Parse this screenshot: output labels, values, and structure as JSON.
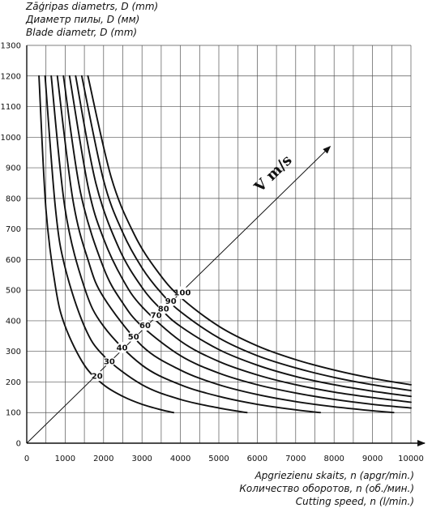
{
  "chart_data": {
    "type": "line",
    "ylabel_lines": [
      "Zāģripas diametrs, D (mm)",
      "Диаметр пилы, D (мм)",
      "Blade diametr, D (mm)"
    ],
    "xlabel_lines": [
      "Apgriezienu skaits, n (apgr/min.)",
      "Количество оборотов, n (об./мин.)",
      "Cutting speed, n (l/min.)"
    ],
    "xlim": [
      0,
      10000
    ],
    "ylim": [
      0,
      1300
    ],
    "x_ticks": [
      0,
      1000,
      2000,
      3000,
      4000,
      5000,
      6000,
      7000,
      8000,
      9000,
      10000
    ],
    "y_ticks": [
      0,
      100,
      200,
      300,
      400,
      500,
      600,
      700,
      800,
      900,
      1000,
      1100,
      1200,
      1300
    ],
    "grid": true,
    "speed_axis_label": "V m/s",
    "series": [
      {
        "name": "20",
        "x": [
          318,
          500,
          750,
          1000,
          1500,
          2000,
          2500,
          3000,
          3500,
          3820
        ],
        "y": [
          1200,
          764,
          509,
          382,
          255,
          191,
          153,
          127,
          109,
          100
        ]
      },
      {
        "name": "30",
        "x": [
          477,
          750,
          1000,
          1500,
          2000,
          3000,
          4000,
          5000,
          5730
        ],
        "y": [
          1200,
          764,
          573,
          382,
          286,
          191,
          143,
          115,
          100
        ]
      },
      {
        "name": "40",
        "x": [
          637,
          1000,
          1500,
          2000,
          3000,
          4000,
          5000,
          6000,
          7000,
          7640
        ],
        "y": [
          1200,
          764,
          509,
          382,
          255,
          191,
          153,
          127,
          109,
          100
        ]
      },
      {
        "name": "50",
        "x": [
          796,
          1200,
          1600,
          2000,
          3000,
          4000,
          5000,
          6000,
          7000,
          8000,
          9000,
          9550
        ],
        "y": [
          1200,
          796,
          597,
          477,
          318,
          239,
          191,
          159,
          136,
          119,
          106,
          100
        ]
      },
      {
        "name": "60",
        "x": [
          955,
          1400,
          2000,
          2500,
          3000,
          4000,
          5000,
          6000,
          7000,
          8000,
          9000,
          10000
        ],
        "y": [
          1200,
          819,
          573,
          458,
          382,
          286,
          229,
          191,
          164,
          143,
          127,
          115
        ]
      },
      {
        "name": "70",
        "x": [
          1114,
          1600,
          2000,
          2500,
          3000,
          4000,
          5000,
          6000,
          7000,
          8000,
          9000,
          10000
        ],
        "y": [
          1200,
          836,
          668,
          535,
          446,
          334,
          267,
          223,
          191,
          167,
          149,
          134
        ]
      },
      {
        "name": "80",
        "x": [
          1273,
          1800,
          2400,
          3000,
          3500,
          4000,
          5000,
          6000,
          7000,
          8000,
          9000,
          10000
        ],
        "y": [
          1200,
          849,
          637,
          509,
          437,
          382,
          306,
          255,
          218,
          191,
          170,
          153
        ]
      },
      {
        "name": "90",
        "x": [
          1432,
          2000,
          2500,
          3000,
          3500,
          4000,
          5000,
          6000,
          7000,
          8000,
          9000,
          10000
        ],
        "y": [
          1200,
          859,
          688,
          573,
          491,
          430,
          344,
          286,
          246,
          215,
          191,
          172
        ]
      },
      {
        "name": "100",
        "x": [
          1592,
          2200,
          2800,
          3400,
          4000,
          5000,
          6000,
          7000,
          8000,
          9000,
          10000
        ],
        "y": [
          1200,
          868,
          682,
          562,
          477,
          382,
          318,
          273,
          239,
          212,
          191
        ]
      }
    ],
    "curve_labels": [
      {
        "text": "20",
        "x": 1830,
        "y": 220
      },
      {
        "text": "30",
        "x": 2150,
        "y": 268
      },
      {
        "text": "40",
        "x": 2480,
        "y": 312
      },
      {
        "text": "50",
        "x": 2780,
        "y": 348
      },
      {
        "text": "60",
        "x": 3080,
        "y": 385
      },
      {
        "text": "70",
        "x": 3370,
        "y": 418
      },
      {
        "text": "80",
        "x": 3560,
        "y": 440
      },
      {
        "text": "90",
        "x": 3750,
        "y": 465
      },
      {
        "text": "100",
        "x": 4050,
        "y": 492
      }
    ],
    "speed_axis": {
      "start": [
        0,
        0
      ],
      "end": [
        7900,
        970
      ],
      "label_at": [
        6500,
        870
      ]
    }
  }
}
